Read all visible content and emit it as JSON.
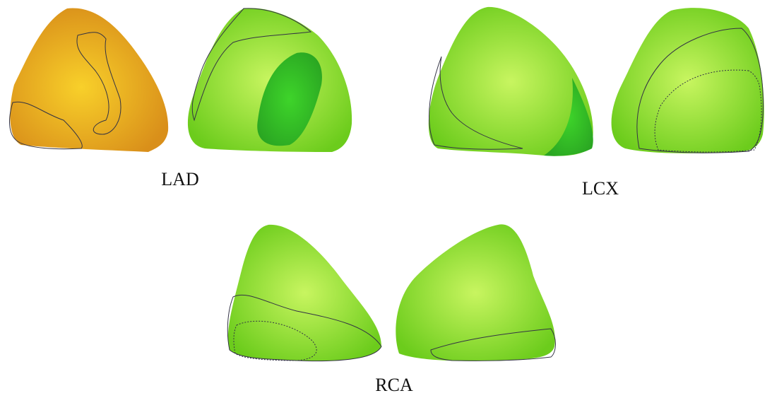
{
  "panels": [
    {
      "label": "LAD"
    },
    {
      "label": "LCX"
    },
    {
      "label": "RCA"
    }
  ]
}
